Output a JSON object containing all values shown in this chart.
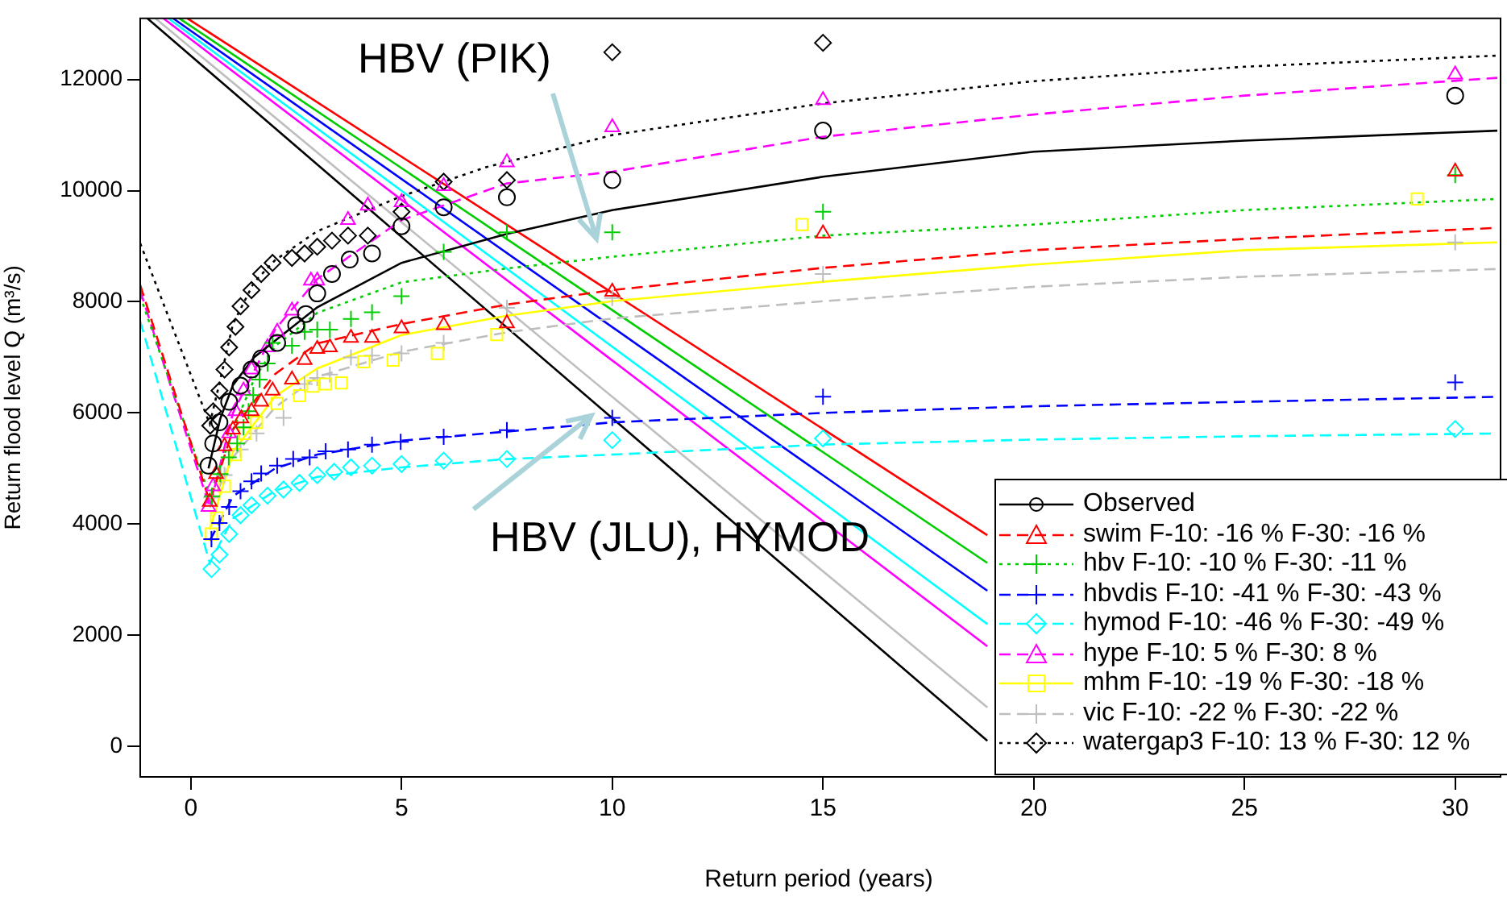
{
  "chart_data": {
    "type": "scatter",
    "xlabel": "Return period (years)",
    "ylabel": "Return flood level Q (m³/s)",
    "xlim": [
      -1.2,
      31
    ],
    "ylim": [
      -550,
      13100
    ],
    "xticks": [
      0,
      5,
      10,
      15,
      20,
      25,
      30
    ],
    "yticks": [
      0,
      2000,
      4000,
      6000,
      8000,
      10000,
      12000
    ],
    "grid": false,
    "legend": "bottom right",
    "annotations": [
      "HBV (PIK)",
      {
        "text": "HBV (JLU), HYMOD",
        "x": 9.5,
        "y": 5950
      }
    ],
    "series": [
      {
        "type": "scatter",
        "name": "Observed",
        "color": "#000000",
        "marker": "circle",
        "x": [
          0.42,
          0.53,
          0.68,
          0.91,
          1.18,
          1.44,
          1.67,
          2.05,
          2.5,
          2.73,
          3.0,
          3.35,
          3.77,
          4.3,
          5.0,
          6.0,
          7.5,
          10.0,
          15.0,
          30.0
        ],
        "values": [
          5050,
          5450,
          5830,
          6200,
          6490,
          6780,
          6980,
          7260,
          7580,
          7780,
          8150,
          8500,
          8760,
          8870,
          9360,
          9700,
          9880,
          10190,
          11080,
          11710
        ]
      },
      {
        "type": "line",
        "color": "#000000",
        "line_style": "solid",
        "x": [
          0.42,
          0.7,
          1,
          1.5,
          2,
          3,
          5,
          7.5,
          10,
          15,
          20,
          25,
          31
        ],
        "values": [
          5000,
          5900,
          6500,
          7000,
          7300,
          7900,
          8700,
          9220,
          9650,
          10250,
          10700,
          10900,
          11080
        ]
      },
      {
        "type": "scatter",
        "name": "swim F-10: -16 % F-30: -16 %",
        "color": "#ff0000",
        "marker": "triangle",
        "x": [
          0.45,
          0.6,
          0.8,
          1.0,
          1.2,
          1.44,
          1.67,
          1.94,
          2.4,
          2.7,
          3.0,
          3.3,
          3.8,
          4.3,
          5.0,
          6.0,
          7.5,
          10.0,
          15.0,
          30.0
        ],
        "values": [
          4400,
          4900,
          5400,
          5700,
          5900,
          6030,
          6200,
          6400,
          6600,
          6950,
          7150,
          7180,
          7350,
          7350,
          7520,
          7580,
          7610,
          8180,
          9230,
          10340
        ]
      },
      {
        "type": "line",
        "color": "#ff0000",
        "line_style": "dashed",
        "x": [
          -1.2,
          0.45,
          1,
          2,
          3,
          5,
          7.5,
          10,
          15,
          20,
          25,
          31
        ],
        "values": [
          8300,
          4400,
          5700,
          6700,
          7250,
          7600,
          7950,
          8210,
          8610,
          8930,
          9130,
          9330
        ]
      },
      {
        "type": "scatter",
        "name": "hbv F-10: -10 % F-30: -11 %",
        "color": "#00cd00",
        "marker": "cross",
        "x": [
          0.5,
          0.7,
          0.9,
          1.1,
          1.25,
          1.37,
          1.48,
          1.63,
          1.82,
          1.94,
          2.4,
          2.7,
          3.0,
          3.3,
          3.8,
          4.3,
          5.0,
          6.0,
          7.5,
          10.0,
          15.0,
          30.0
        ],
        "values": [
          4500,
          4900,
          5200,
          5450,
          5740,
          6030,
          6320,
          6600,
          6890,
          7260,
          7210,
          7460,
          7500,
          7500,
          7690,
          7810,
          8100,
          8900,
          9250,
          9250,
          9620,
          10280
        ]
      },
      {
        "type": "line",
        "color": "#00cd00",
        "line_style": "dotted",
        "x": [
          -1.2,
          0.45,
          1,
          1.5,
          2,
          3,
          5,
          7.5,
          10,
          15,
          20,
          25,
          31
        ],
        "values": [
          8100,
          4500,
          5700,
          6600,
          7200,
          7800,
          8350,
          8600,
          8810,
          9190,
          9390,
          9650,
          9850
        ]
      },
      {
        "type": "scatter",
        "name": "hbvdis F-10: -41 % F-30: -43 %",
        "color": "#0000ff",
        "marker": "cross",
        "x": [
          0.49,
          0.68,
          0.91,
          1.18,
          1.44,
          1.67,
          2.05,
          2.43,
          2.82,
          3.2,
          3.73,
          4.3,
          4.98,
          6.0,
          7.5,
          10.0,
          15.0,
          30.0
        ],
        "values": [
          3730,
          4020,
          4310,
          4590,
          4770,
          4910,
          5050,
          5170,
          5200,
          5310,
          5340,
          5430,
          5480,
          5570,
          5690,
          5910,
          6290,
          6550
        ]
      },
      {
        "type": "line",
        "color": "#0000ff",
        "line_style": "dashed",
        "x": [
          0.45,
          1,
          2,
          3,
          5,
          10,
          15,
          20,
          25,
          31
        ],
        "values": [
          3700,
          4500,
          5000,
          5250,
          5500,
          5830,
          6000,
          6120,
          6200,
          6290
        ]
      },
      {
        "type": "scatter",
        "name": "hymod F-10: -46 % F-30: -49 %",
        "color": "#00ffff",
        "marker": "diamond",
        "x": [
          0.49,
          0.68,
          0.91,
          1.18,
          1.44,
          1.82,
          2.2,
          2.58,
          3.0,
          3.4,
          3.8,
          4.3,
          5.0,
          6.0,
          7.5,
          10.0,
          15.0,
          30.0
        ],
        "values": [
          3190,
          3450,
          3820,
          4160,
          4340,
          4510,
          4620,
          4740,
          4880,
          4940,
          5020,
          5050,
          5080,
          5140,
          5170,
          5510,
          5540,
          5710
        ]
      },
      {
        "type": "line",
        "color": "#00ffff",
        "line_style": "dashed",
        "x": [
          -1.2,
          0.45,
          1,
          2,
          3,
          5,
          7.5,
          10,
          15,
          20,
          25,
          31
        ],
        "values": [
          7650,
          3300,
          4100,
          4600,
          4850,
          5020,
          5170,
          5250,
          5430,
          5520,
          5580,
          5630
        ]
      },
      {
        "type": "scatter",
        "name": "hype F-10: 5 % F-30: 8 %",
        "color": "#ff00ff",
        "marker": "triangle",
        "x": [
          0.42,
          0.53,
          0.91,
          1.06,
          1.25,
          1.44,
          1.82,
          2.05,
          2.4,
          2.85,
          3.0,
          3.73,
          4.2,
          5.0,
          6.0,
          7.5,
          10.0,
          15.0,
          30.0
        ],
        "values": [
          4310,
          4680,
          5630,
          6030,
          6400,
          6780,
          7180,
          7460,
          7840,
          8380,
          8380,
          9470,
          9730,
          9790,
          10080,
          10510,
          11140,
          11630,
          12090
        ]
      },
      {
        "type": "line",
        "color": "#ff00ff",
        "line_style": "dashed",
        "x": [
          -1.2,
          0.45,
          1,
          2,
          3,
          5,
          7.5,
          10,
          15,
          20,
          25,
          31
        ],
        "values": [
          8200,
          4300,
          6000,
          7500,
          8410,
          9470,
          10130,
          10340,
          10970,
          11370,
          11710,
          12030
        ]
      },
      {
        "type": "scatter",
        "name": "mhm F-10: -19 % F-30: -18 %",
        "color": "#ffff00",
        "marker": "square",
        "x": [
          0.49,
          0.61,
          0.8,
          1.06,
          1.29,
          1.56,
          2.05,
          2.58,
          2.9,
          3.2,
          3.57,
          4.1,
          4.8,
          5.85,
          7.26,
          14.5,
          29.1
        ],
        "values": [
          3820,
          4110,
          4680,
          5250,
          5630,
          5830,
          6170,
          6310,
          6480,
          6520,
          6540,
          6920,
          6950,
          7070,
          7410,
          9390,
          9850
        ]
      },
      {
        "type": "line",
        "color": "#ffff00",
        "line_style": "solid",
        "x": [
          0.45,
          1,
          2,
          3,
          5,
          7.5,
          10,
          15,
          20,
          25,
          31
        ],
        "values": [
          3900,
          5300,
          6300,
          6800,
          7400,
          7750,
          8010,
          8360,
          8670,
          8930,
          9070
        ]
      },
      {
        "type": "scatter",
        "name": "vic F-10: -22 % F-30: -22 %",
        "color": "#bebebe",
        "marker": "cross",
        "x": [
          0.49,
          0.8,
          1.18,
          1.56,
          2.2,
          2.7,
          3.0,
          3.3,
          3.8,
          4.3,
          5.0,
          6.0,
          7.5,
          10.0,
          15.0,
          30.0
        ],
        "values": [
          4480,
          4880,
          5340,
          5630,
          5910,
          6520,
          6630,
          6690,
          7000,
          7030,
          7070,
          7260,
          7890,
          8070,
          8500,
          9070
        ]
      },
      {
        "type": "line",
        "color": "#bebebe",
        "line_style": "dashed",
        "x": [
          0.45,
          1,
          2,
          3,
          5,
          7.5,
          10,
          15,
          20,
          25,
          31
        ],
        "values": [
          4300,
          5200,
          6100,
          6650,
          7100,
          7450,
          7700,
          8010,
          8270,
          8450,
          8590
        ]
      },
      {
        "type": "scatter",
        "name": "watergap3 F-10: 13 % F-30: 12 %",
        "color": "#000000",
        "marker": "diamond",
        "x": [
          0.46,
          0.53,
          0.68,
          0.8,
          0.91,
          1.06,
          1.18,
          1.44,
          1.67,
          1.94,
          2.4,
          2.7,
          3.0,
          3.35,
          3.73,
          4.2,
          5.0,
          6.0,
          7.5,
          10.0,
          15.0
        ],
        "values": [
          5770,
          6030,
          6400,
          6780,
          7180,
          7550,
          7920,
          8210,
          8500,
          8700,
          8790,
          8870,
          8990,
          9100,
          9190,
          9190,
          9620,
          10160,
          10190,
          12490,
          12660
        ]
      },
      {
        "type": "line",
        "color": "#000000",
        "line_style": "dotted",
        "x": [
          -1.2,
          0.45,
          0.7,
          1,
          1.5,
          2,
          3,
          5,
          7,
          10,
          15,
          20,
          25,
          31
        ],
        "values": [
          9050,
          5800,
          6600,
          7600,
          8350,
          8750,
          9270,
          9900,
          10420,
          11000,
          11570,
          11970,
          12230,
          12430
        ]
      },
      {
        "type": "line",
        "color": "#ff0000",
        "line_style": "solid",
        "x": [
          -0.08,
          18.9
        ],
        "values": [
          13100,
          3800
        ]
      },
      {
        "type": "line",
        "color": "#00cd00",
        "line_style": "solid",
        "x": [
          -0.27,
          18.9
        ],
        "values": [
          13100,
          3300
        ]
      },
      {
        "type": "line",
        "color": "#0000ff",
        "line_style": "solid",
        "x": [
          -0.42,
          18.9
        ],
        "values": [
          13100,
          2800
        ]
      },
      {
        "type": "line",
        "color": "#00ffff",
        "line_style": "solid",
        "x": [
          -0.53,
          18.9
        ],
        "values": [
          13100,
          2200
        ]
      },
      {
        "type": "line",
        "color": "#ff00ff",
        "line_style": "solid",
        "x": [
          -0.65,
          18.9
        ],
        "values": [
          13100,
          1800
        ]
      },
      {
        "type": "line",
        "color": "#bebebe",
        "line_style": "solid",
        "x": [
          -0.84,
          18.9
        ],
        "values": [
          13100,
          700
        ]
      },
      {
        "type": "line",
        "color": "#000000",
        "line_style": "solid",
        "x": [
          -1.03,
          18.9
        ],
        "values": [
          13100,
          100
        ]
      }
    ]
  }
}
